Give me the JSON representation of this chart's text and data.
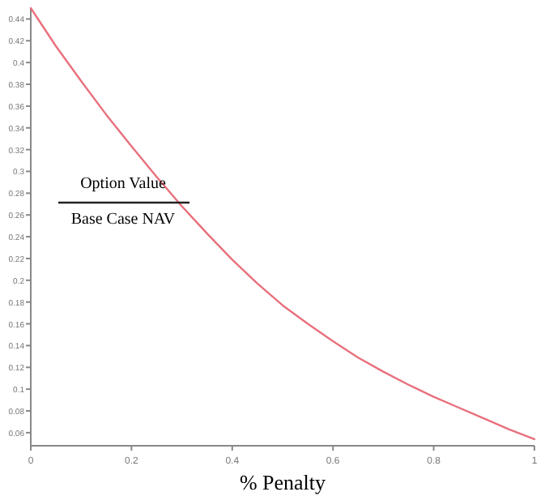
{
  "chart_data": {
    "type": "line",
    "xlabel": "%   Penalty",
    "annotations": [
      "Option Value",
      "Base Case NAV"
    ],
    "x": [
      0,
      0.05,
      0.1,
      0.15,
      0.2,
      0.25,
      0.3,
      0.35,
      0.4,
      0.45,
      0.5,
      0.55,
      0.6,
      0.65,
      0.7,
      0.75,
      0.8,
      0.85,
      0.9,
      0.95,
      1
    ],
    "series": [
      {
        "color": "#e8707c",
        "values": [
          0.45,
          0.415,
          0.383,
          0.352,
          0.323,
          0.295,
          0.268,
          0.243,
          0.219,
          0.197,
          0.177,
          0.16,
          0.144,
          0.129,
          0.116,
          0.104,
          0.093,
          0.083,
          0.073,
          0.063,
          0.054
        ]
      }
    ],
    "xlim": [
      0,
      1
    ],
    "ylim": [
      0.048,
      0.45
    ],
    "xticks": [
      0,
      0.2,
      0.4,
      0.6,
      0.8,
      1
    ],
    "yticks": [
      0.06,
      0.08,
      0.1,
      0.12,
      0.14,
      0.16,
      0.18,
      0.2,
      0.22,
      0.24,
      0.26,
      0.28,
      0.3,
      0.32,
      0.34,
      0.36,
      0.38,
      0.4,
      0.42,
      0.44
    ],
    "grid": false,
    "line_style": "solid"
  }
}
